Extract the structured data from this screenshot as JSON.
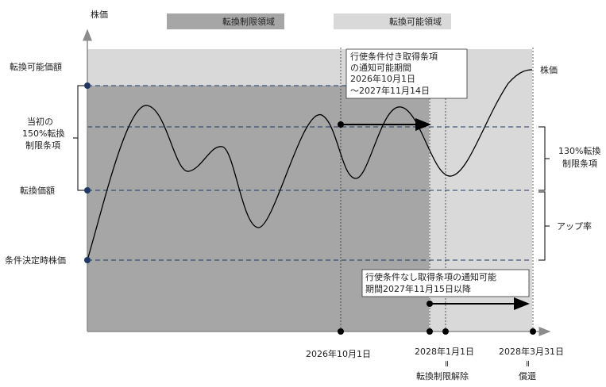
{
  "legend": {
    "restricted_label": "転換制限領域",
    "restricted_color": "#a6a6a6",
    "allowed_label": "転換可能領域",
    "allowed_color": "#d9d9d9"
  },
  "axes": {
    "y_title": "株価"
  },
  "y_levels": {
    "conversion_possible_price": "転換可能価額",
    "conversion_price": "転換価額",
    "condition_stock_price": "条件決定時株価"
  },
  "brackets": {
    "initial_150": [
      "当初の",
      "150%転換",
      "制限条項"
    ],
    "condition_130": [
      "130%転換",
      "制限条項"
    ],
    "up_rate": "アップ率"
  },
  "stock_line_label": "株価",
  "callouts": {
    "with_conditions": [
      "行使条件付き取得条項",
      "の通知可能期間",
      "2026年10月1日",
      "～2027年11月14日"
    ],
    "without_conditions": [
      "行使条件なし取得条項の通知可能",
      "期間2027年11月15日以降"
    ]
  },
  "x_labels": {
    "d1": "2026年10月1日",
    "d2": "2028年1月1日",
    "d2_note": "転換制限解除",
    "d3": "2028年3月31日",
    "d3_note": "償還",
    "equals_mark": "="
  },
  "colors": {
    "axis": "#8c8c8c",
    "dashed": "#1f3864",
    "curve": "#000000",
    "marker": "#1f3864"
  }
}
